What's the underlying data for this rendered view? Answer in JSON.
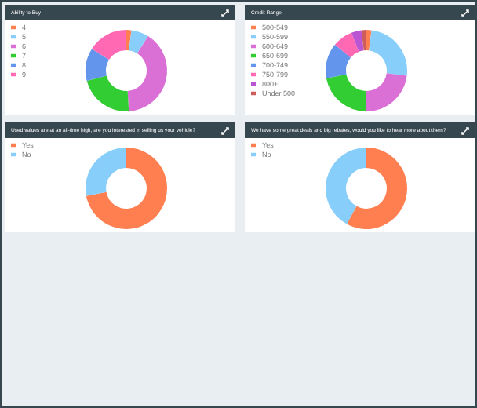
{
  "chart_data": [
    {
      "type": "donut",
      "title": "Ability to Buy",
      "categories": [
        "4",
        "5",
        "6",
        "7",
        "8",
        "9"
      ],
      "values": [
        2,
        7,
        40,
        22,
        13,
        16
      ],
      "colors": [
        "#ff7f50",
        "#87cefa",
        "#da70d6",
        "#32cd32",
        "#6495ed",
        "#ff69b4"
      ],
      "legend": "top left"
    },
    {
      "type": "donut",
      "title": "Credit Range",
      "categories": [
        "500-549",
        "550-599",
        "600-649",
        "650-699",
        "700-749",
        "750-799",
        "800+",
        "Under 500"
      ],
      "values": [
        2,
        25,
        23,
        22,
        14,
        8,
        4,
        2
      ],
      "colors": [
        "#ff7f50",
        "#87cefa",
        "#da70d6",
        "#32cd32",
        "#6495ed",
        "#ff69b4",
        "#ba55d3",
        "#cd5c5c"
      ],
      "legend": "top left"
    },
    {
      "type": "donut",
      "title": "Used values are at an all-time high, are you interested in selling us your vehicle?",
      "categories": [
        "Yes",
        "No"
      ],
      "values": [
        72,
        28
      ],
      "colors": [
        "#ff7f50",
        "#87cefa"
      ],
      "legend": "top left"
    },
    {
      "type": "donut",
      "title": "We have some great deals and big rebates, would you like to hear more about them?",
      "categories": [
        "Yes",
        "No"
      ],
      "values": [
        58,
        42
      ],
      "colors": [
        "#ff7f50",
        "#87cefa"
      ],
      "legend": "top left"
    }
  ]
}
